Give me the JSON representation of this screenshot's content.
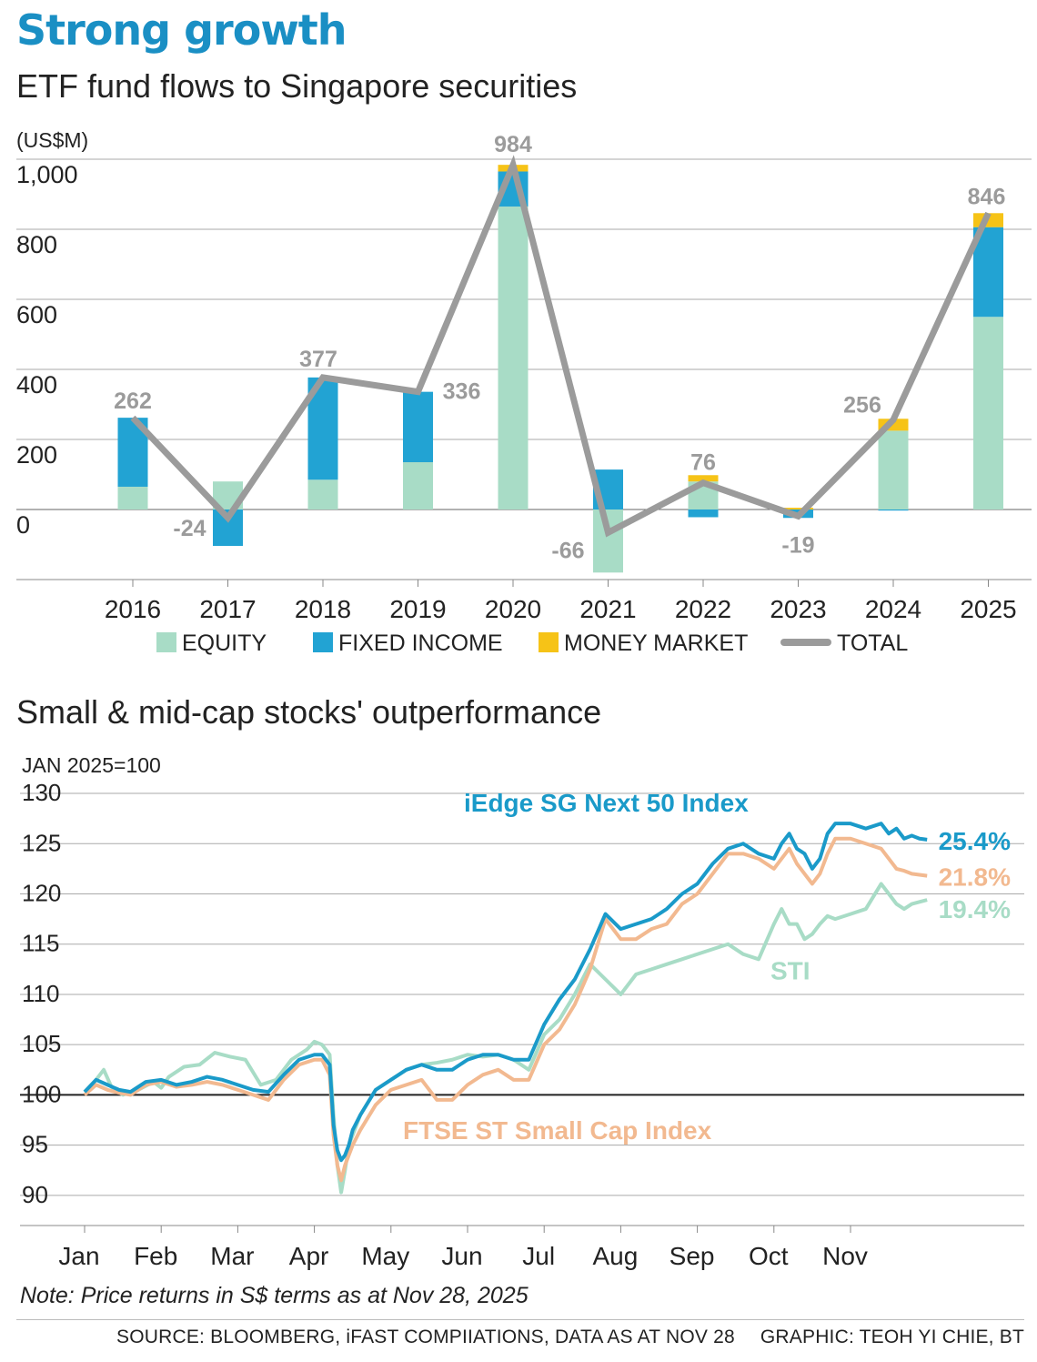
{
  "header": {
    "title": "Strong growth",
    "subtitle1": "ETF fund flows to Singapore securities",
    "subtitle2": "Small & mid-cap stocks' outperformance"
  },
  "footer": {
    "note": "Note: Price returns in S$ terms as at Nov 28, 2025",
    "source": "SOURCE: BLOOMBERG, iFAST COMPIIATIONS, DATA AS AT NOV 28",
    "graphic": "GRAPHIC: TEOH YI CHIE, BT"
  },
  "colors": {
    "equity": "#a8dcc6",
    "fixed_income": "#22a3d3",
    "money_market": "#f6c317",
    "total": "#9b9b9b",
    "iedge": "#1a9ac9",
    "ftse": "#f2b990",
    "sti": "#a8dcc6"
  },
  "chart_data": [
    {
      "type": "bar",
      "stacked": true,
      "title": "ETF fund flows to Singapore securities",
      "unit_label": "(US$M)",
      "ylim": [
        -200,
        1000
      ],
      "yticks": [
        0,
        200,
        400,
        600,
        800,
        1000
      ],
      "ytick_labels": [
        "0",
        "200",
        "400",
        "600",
        "800",
        "1,000"
      ],
      "categories": [
        "2016",
        "2017",
        "2018",
        "2019",
        "2020",
        "2021",
        "2022",
        "2023",
        "2024",
        "2025"
      ],
      "series": [
        {
          "name": "EQUITY",
          "key": "equity",
          "values": [
            65,
            80,
            85,
            135,
            865,
            -180,
            80,
            0,
            225,
            550
          ]
        },
        {
          "name": "FIXED INCOME",
          "key": "fixed_income",
          "values": [
            197,
            -104,
            292,
            201,
            100,
            114,
            -22,
            -24,
            -3,
            256
          ]
        },
        {
          "name": "MONEY MARKET",
          "key": "money_market",
          "values": [
            0,
            0,
            0,
            0,
            19,
            0,
            18,
            5,
            34,
            40
          ]
        }
      ],
      "total": {
        "name": "TOTAL",
        "values": [
          262,
          -24,
          377,
          336,
          984,
          -66,
          76,
          -19,
          256,
          846
        ],
        "labels": [
          "262",
          "-24",
          "377",
          "336",
          "984",
          "-66",
          "76",
          "-19",
          "256",
          "846"
        ]
      },
      "legend": [
        {
          "label": "EQUITY",
          "key": "equity",
          "kind": "square"
        },
        {
          "label": "FIXED INCOME",
          "key": "fixed_income",
          "kind": "square"
        },
        {
          "label": "MONEY MARKET",
          "key": "money_market",
          "kind": "square"
        },
        {
          "label": "TOTAL",
          "key": "total",
          "kind": "line"
        }
      ]
    },
    {
      "type": "line",
      "title": "Small & mid-cap stocks' outperformance",
      "ylabel": "JAN 2025=100",
      "ylim": [
        87,
        131
      ],
      "yticks": [
        90,
        95,
        100,
        105,
        110,
        115,
        120,
        125,
        130
      ],
      "ytick_labels": [
        "90",
        "95",
        "100",
        "105",
        "110",
        "115",
        "120",
        "125",
        "130"
      ],
      "xlim": [
        0,
        11.9
      ],
      "xticks": [
        0,
        1,
        2,
        3,
        4,
        5,
        6,
        7,
        8,
        9,
        10
      ],
      "xtick_labels": [
        "Jan",
        "Feb",
        "Mar",
        "Apr",
        "May",
        "Jun",
        "Jul",
        "Aug",
        "Sep",
        "Oct",
        "Nov"
      ],
      "baseline": 100,
      "series": [
        {
          "name": "STI",
          "key": "sti",
          "label": "STI",
          "end_label": "19.4%",
          "x": [
            0,
            0.15,
            0.25,
            0.35,
            0.5,
            0.7,
            0.9,
            1.0,
            1.1,
            1.3,
            1.5,
            1.7,
            1.9,
            2.1,
            2.3,
            2.5,
            2.7,
            2.9,
            3.0,
            3.1,
            3.2,
            3.25,
            3.3,
            3.35,
            3.4,
            3.45,
            3.5,
            3.6,
            3.8,
            4.0,
            4.2,
            4.4,
            4.6,
            4.8,
            5.0,
            5.2,
            5.4,
            5.6,
            5.8,
            6.0,
            6.2,
            6.4,
            6.6,
            6.8,
            7.0,
            7.2,
            7.4,
            7.6,
            7.8,
            8.0,
            8.2,
            8.4,
            8.6,
            8.8,
            9.0,
            9.1,
            9.2,
            9.3,
            9.4,
            9.5,
            9.6,
            9.7,
            9.8,
            10.0,
            10.2,
            10.4,
            10.5,
            10.6,
            10.7,
            10.8,
            10.9,
            11.0
          ],
          "y": [
            100.3,
            101.5,
            102.5,
            100.8,
            100.0,
            100.5,
            101.3,
            100.7,
            101.8,
            102.8,
            103.0,
            104.2,
            103.8,
            103.5,
            101.0,
            101.5,
            103.5,
            104.5,
            105.3,
            105.0,
            104.0,
            98.0,
            93.0,
            90.3,
            92.5,
            95.0,
            96.0,
            98.0,
            100.5,
            101.5,
            102.5,
            103.0,
            103.2,
            103.5,
            104.0,
            103.8,
            104.0,
            103.5,
            102.5,
            106.0,
            107.5,
            110.0,
            113.0,
            111.5,
            110.0,
            112.0,
            112.5,
            113.0,
            113.5,
            114.0,
            114.5,
            115.0,
            114.0,
            113.5,
            117.0,
            118.5,
            117.0,
            117.0,
            115.5,
            116.0,
            117.0,
            117.8,
            117.5,
            118.0,
            118.5,
            121.0,
            120.0,
            119.0,
            118.5,
            119.0,
            119.2,
            119.4
          ]
        },
        {
          "name": "FTSE ST Small Cap Index",
          "key": "ftse",
          "label": "FTSE ST Small Cap Index",
          "end_label": "21.8%",
          "x": [
            0,
            0.15,
            0.3,
            0.45,
            0.6,
            0.8,
            1.0,
            1.2,
            1.4,
            1.6,
            1.8,
            2.0,
            2.2,
            2.4,
            2.6,
            2.8,
            3.0,
            3.1,
            3.2,
            3.25,
            3.3,
            3.35,
            3.4,
            3.45,
            3.5,
            3.6,
            3.8,
            4.0,
            4.2,
            4.4,
            4.6,
            4.8,
            5.0,
            5.2,
            5.4,
            5.6,
            5.8,
            6.0,
            6.2,
            6.4,
            6.6,
            6.8,
            7.0,
            7.2,
            7.4,
            7.6,
            7.8,
            8.0,
            8.2,
            8.4,
            8.6,
            8.8,
            9.0,
            9.1,
            9.2,
            9.3,
            9.4,
            9.5,
            9.6,
            9.7,
            9.8,
            10.0,
            10.2,
            10.4,
            10.5,
            10.6,
            10.7,
            10.8,
            10.9,
            11.0
          ],
          "y": [
            100.0,
            101.0,
            100.5,
            100.2,
            100.0,
            101.0,
            101.3,
            100.8,
            101.0,
            101.3,
            101.0,
            100.5,
            100.0,
            99.5,
            101.5,
            103.0,
            103.5,
            103.5,
            102.0,
            96.0,
            93.0,
            91.5,
            93.0,
            94.0,
            95.0,
            96.5,
            99.0,
            100.5,
            101.0,
            101.5,
            99.5,
            99.5,
            101.0,
            102.0,
            102.5,
            101.5,
            101.5,
            105.0,
            106.5,
            109.0,
            112.5,
            117.5,
            115.5,
            115.5,
            116.5,
            117.0,
            119.0,
            120.0,
            122.0,
            124.0,
            124.0,
            123.5,
            122.5,
            123.5,
            124.5,
            123.0,
            122.0,
            121.0,
            122.0,
            124.0,
            125.5,
            125.5,
            125.0,
            124.5,
            123.5,
            122.5,
            122.3,
            122.0,
            121.9,
            121.8
          ]
        },
        {
          "name": "iEdge SG Next 50 Index",
          "key": "iedge",
          "label": "iEdge SG Next 50 Index",
          "end_label": "25.4%",
          "x": [
            0,
            0.15,
            0.3,
            0.45,
            0.6,
            0.8,
            1.0,
            1.2,
            1.4,
            1.6,
            1.8,
            2.0,
            2.2,
            2.4,
            2.6,
            2.8,
            3.0,
            3.1,
            3.2,
            3.25,
            3.3,
            3.35,
            3.4,
            3.45,
            3.5,
            3.6,
            3.8,
            4.0,
            4.2,
            4.4,
            4.6,
            4.8,
            5.0,
            5.2,
            5.4,
            5.6,
            5.8,
            6.0,
            6.2,
            6.4,
            6.6,
            6.8,
            7.0,
            7.2,
            7.4,
            7.6,
            7.8,
            8.0,
            8.2,
            8.4,
            8.6,
            8.8,
            9.0,
            9.1,
            9.2,
            9.3,
            9.4,
            9.5,
            9.6,
            9.7,
            9.8,
            10.0,
            10.2,
            10.4,
            10.5,
            10.6,
            10.7,
            10.8,
            10.9,
            11.0
          ],
          "y": [
            100.3,
            101.5,
            101.0,
            100.5,
            100.3,
            101.3,
            101.5,
            101.0,
            101.3,
            101.8,
            101.5,
            101.0,
            100.5,
            100.3,
            102.0,
            103.5,
            104.0,
            104.0,
            103.0,
            97.0,
            94.5,
            93.5,
            94.0,
            95.0,
            96.5,
            98.0,
            100.5,
            101.5,
            102.5,
            103.0,
            102.5,
            102.5,
            103.5,
            104.0,
            104.0,
            103.5,
            103.5,
            107.0,
            109.5,
            111.5,
            114.5,
            118.0,
            116.5,
            117.0,
            117.5,
            118.5,
            120.0,
            121.0,
            123.0,
            124.5,
            125.0,
            124.0,
            123.5,
            125.0,
            126.0,
            124.5,
            124.0,
            122.5,
            123.5,
            126.0,
            127.0,
            127.0,
            126.5,
            127.0,
            126.0,
            126.5,
            125.5,
            125.8,
            125.5,
            125.4
          ]
        }
      ]
    }
  ]
}
